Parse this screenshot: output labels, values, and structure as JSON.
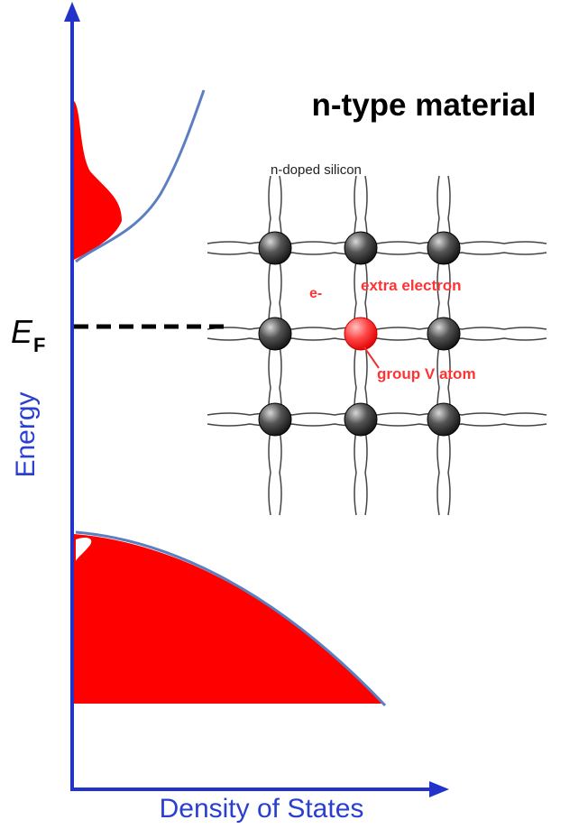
{
  "title": "n-type material",
  "axes": {
    "y_label": "Energy",
    "x_label": "Density of States"
  },
  "fermi_level": {
    "symbol": "E",
    "subscript": "F"
  },
  "lattice": {
    "label": "n-doped silicon",
    "electron": "e-",
    "electron_label": "extra electron",
    "dopant_label": "group V atom"
  }
}
